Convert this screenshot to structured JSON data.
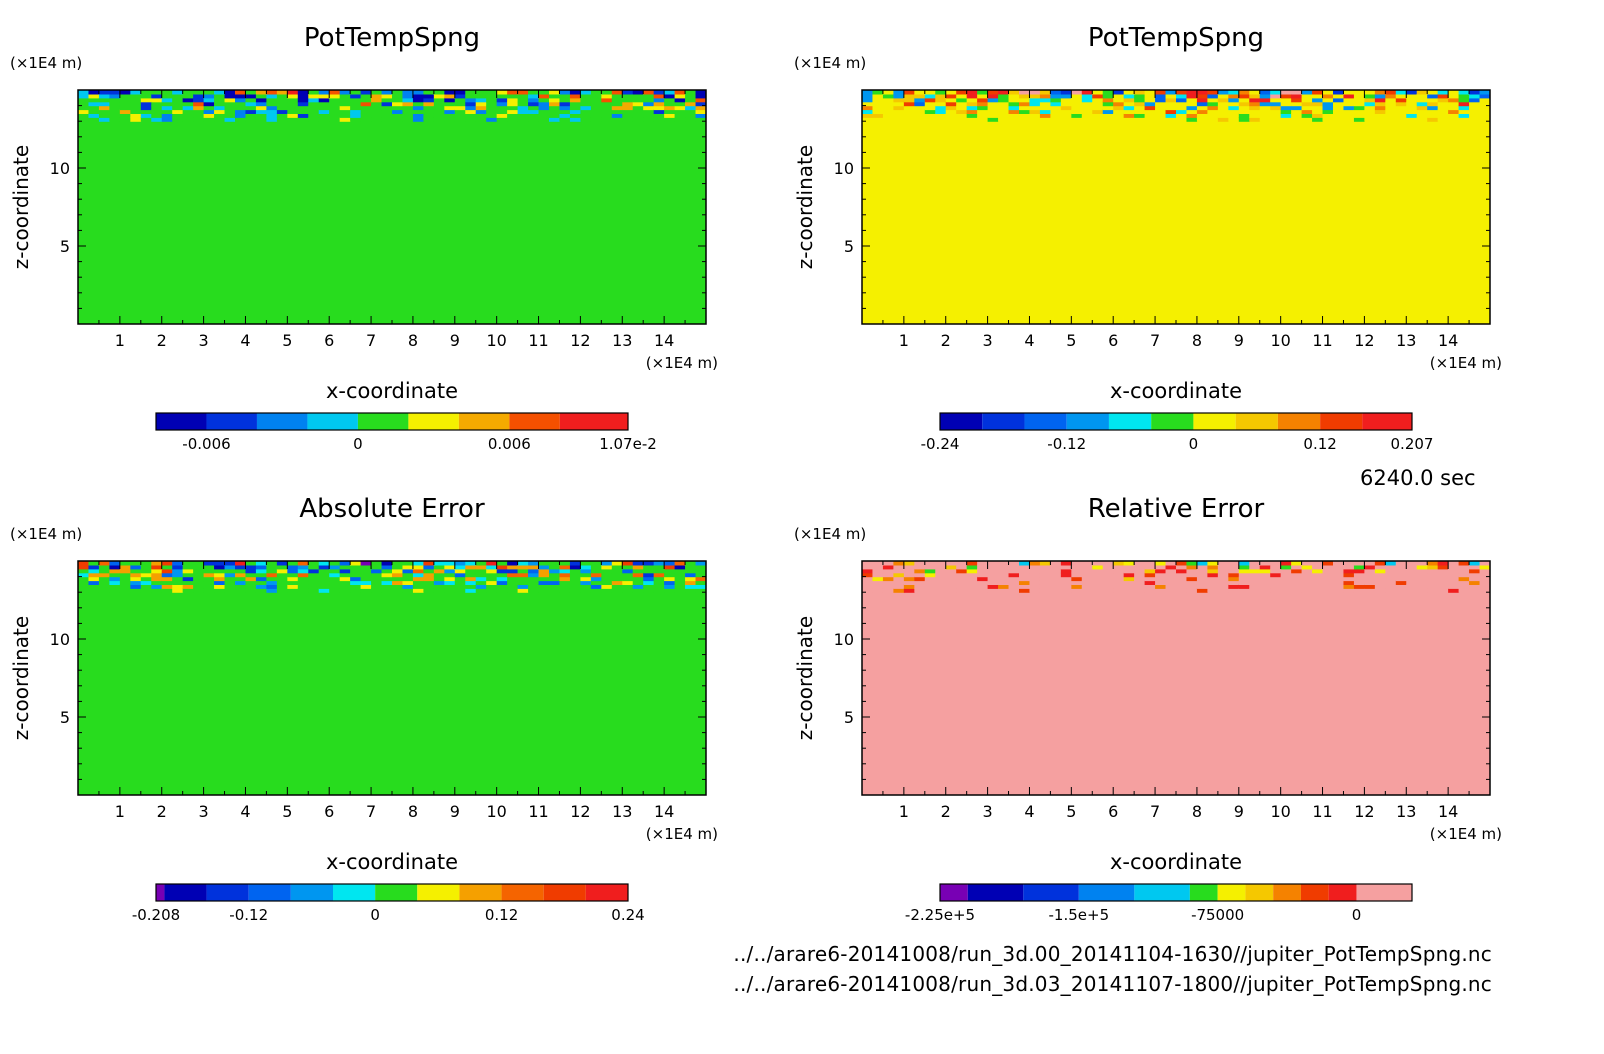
{
  "time_label": "6240.0 sec",
  "file_paths": [
    "../../arare6-20141008/run_3d.00_20141104-1630//jupiter_PotTempSpng.nc",
    "../../arare6-20141008/run_3d.03_20141107-1800//jupiter_PotTempSpng.nc"
  ],
  "chart_data": [
    {
      "type": "heatmap",
      "title": "PotTempSpng",
      "xlabel": "x-coordinate",
      "ylabel": "z-coordinate",
      "x_unit": "(×1E4 m)",
      "y_unit": "(×1E4 m)",
      "xlim": [
        0,
        15
      ],
      "ylim": [
        0,
        15
      ],
      "x_ticks": [
        1,
        2,
        3,
        4,
        5,
        6,
        7,
        8,
        9,
        10,
        11,
        12,
        13,
        14
      ],
      "y_ticks": [
        5,
        10
      ],
      "background_value": 0,
      "colorbar": {
        "levels": [
          -0.008,
          -0.006,
          -0.004,
          -0.002,
          0,
          0.002,
          0.004,
          0.006,
          0.008,
          0.0107
        ],
        "colors": [
          "#0000b4",
          "#0032dc",
          "#0082f0",
          "#00c8f0",
          "#28dc1e",
          "#f5f000",
          "#f5aa00",
          "#f55000",
          "#f01e1e",
          "#f5a0a0"
        ],
        "tick_values": [
          -0.006,
          0,
          0.006,
          0.0107
        ],
        "tick_labels": [
          "-0.006",
          "0",
          "0.006",
          "1.07e-2"
        ]
      }
    },
    {
      "type": "heatmap",
      "title": "PotTempSpng",
      "xlabel": "x-coordinate",
      "ylabel": "z-coordinate",
      "x_unit": "(×1E4 m)",
      "y_unit": "(×1E4 m)",
      "xlim": [
        0,
        15
      ],
      "ylim": [
        0,
        15
      ],
      "x_ticks": [
        1,
        2,
        3,
        4,
        5,
        6,
        7,
        8,
        9,
        10,
        11,
        12,
        13,
        14
      ],
      "y_ticks": [
        5,
        10
      ],
      "background_value": 0.02,
      "colorbar": {
        "levels": [
          -0.24,
          -0.2,
          -0.16,
          -0.12,
          -0.08,
          -0.04,
          0,
          0.04,
          0.08,
          0.12,
          0.16,
          0.207
        ],
        "colors": [
          "#0000b4",
          "#0032dc",
          "#0064f0",
          "#0096f0",
          "#00e6f0",
          "#28dc1e",
          "#f5f000",
          "#f5c800",
          "#f58200",
          "#f03c00",
          "#f01e1e",
          "#f5a0a0"
        ],
        "tick_values": [
          -0.24,
          -0.12,
          0,
          0.12,
          0.207
        ],
        "tick_labels": [
          "-0.24",
          "-0.12",
          "0",
          "0.12",
          "0.207"
        ]
      }
    },
    {
      "type": "heatmap",
      "title": "Absolute Error",
      "xlabel": "x-coordinate",
      "ylabel": "z-coordinate",
      "x_unit": "(×1E4 m)",
      "y_unit": "(×1E4 m)",
      "xlim": [
        0,
        15
      ],
      "ylim": [
        0,
        15
      ],
      "x_ticks": [
        1,
        2,
        3,
        4,
        5,
        6,
        7,
        8,
        9,
        10,
        11,
        12,
        13,
        14
      ],
      "y_ticks": [
        5,
        10
      ],
      "background_value": 0,
      "colorbar": {
        "levels": [
          -0.208,
          -0.2,
          -0.16,
          -0.12,
          -0.08,
          -0.04,
          0,
          0.04,
          0.08,
          0.12,
          0.16,
          0.2,
          0.24
        ],
        "colors": [
          "#7800b4",
          "#0000b4",
          "#0032dc",
          "#0064f0",
          "#0096f0",
          "#00e6f0",
          "#28dc1e",
          "#f5f000",
          "#f5a000",
          "#f56400",
          "#f03c00",
          "#f01e1e",
          "#f03c3c"
        ],
        "tick_values": [
          -0.208,
          -0.12,
          0,
          0.12,
          0.24
        ],
        "tick_labels": [
          "-0.208",
          "-0.12",
          "0",
          "0.12",
          "0.24"
        ]
      }
    },
    {
      "type": "heatmap",
      "title": "Relative Error",
      "xlabel": "x-coordinate",
      "ylabel": "z-coordinate",
      "x_unit": "(×1E4 m)",
      "y_unit": "(×1E4 m)",
      "xlim": [
        0,
        15
      ],
      "ylim": [
        0,
        15
      ],
      "x_ticks": [
        1,
        2,
        3,
        4,
        5,
        6,
        7,
        8,
        9,
        10,
        11,
        12,
        13,
        14
      ],
      "y_ticks": [
        5,
        10
      ],
      "background_value": 10000,
      "colorbar": {
        "levels": [
          -225000,
          -210000,
          -180000,
          -150000,
          -120000,
          -90000,
          -75000,
          -60000,
          -45000,
          -30000,
          -15000,
          0,
          30000
        ],
        "colors": [
          "#7800b4",
          "#0000b4",
          "#0032dc",
          "#0082f0",
          "#00c8f0",
          "#28dc1e",
          "#f5f000",
          "#f5c800",
          "#f58200",
          "#f03c00",
          "#f01e1e",
          "#f5a0a0"
        ],
        "tick_values": [
          -225000,
          -150000,
          -75000,
          0
        ],
        "tick_labels": [
          "-2.25e+5",
          "-1.5e+5",
          "-75000",
          "0"
        ]
      }
    }
  ]
}
